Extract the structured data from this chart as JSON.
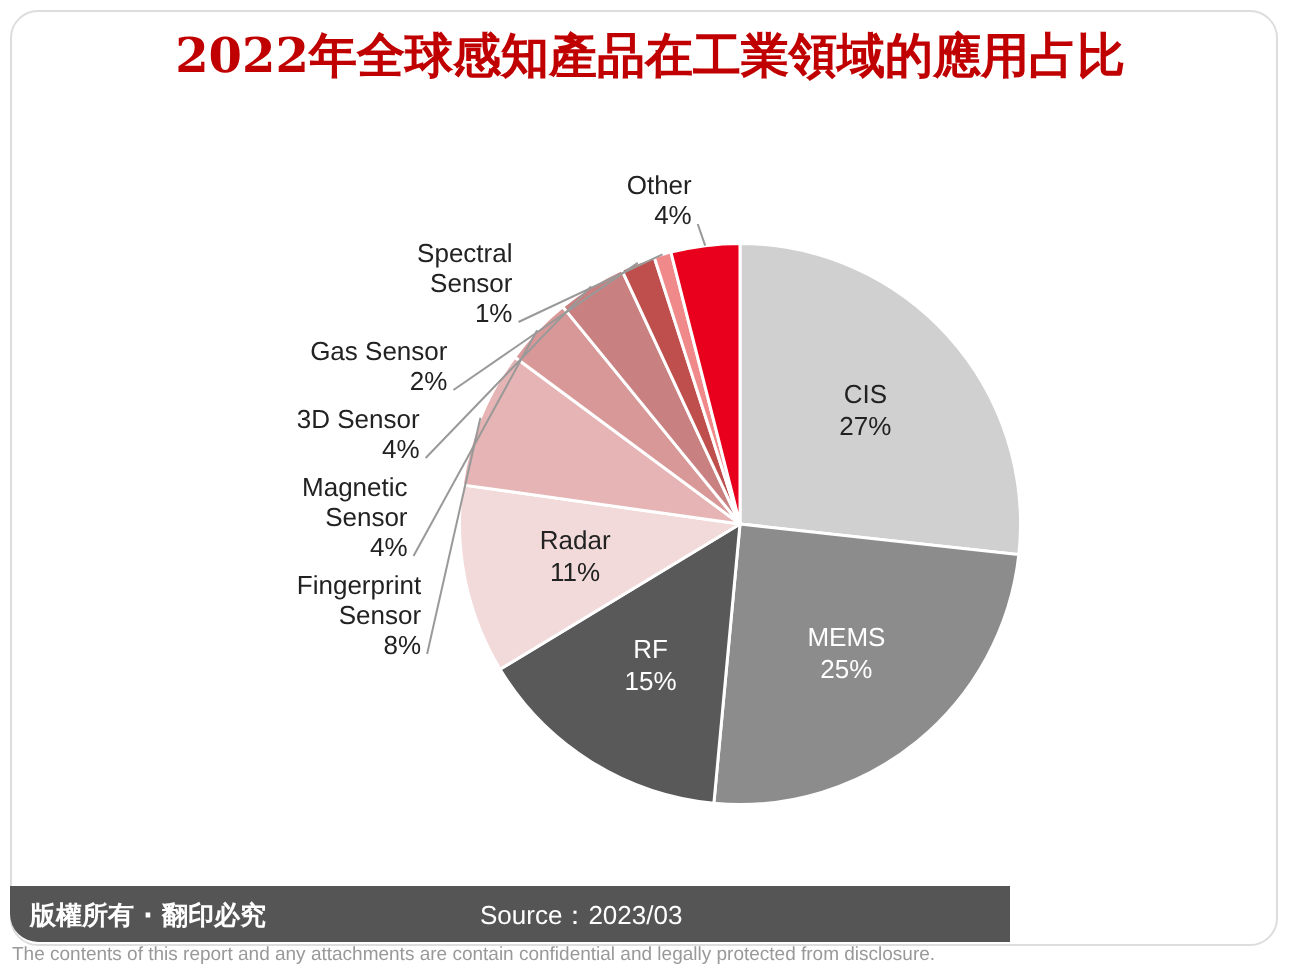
{
  "chart_data": {
    "type": "pie",
    "title": "2022年全球感知產品在工業領域的應用占比",
    "categories": [
      "CIS",
      "MEMS",
      "RF",
      "Radar",
      "Fingerprint Sensor",
      "Magnetic Sensor",
      "3D Sensor",
      "Gas Sensor",
      "Spectral Sensor",
      "Other"
    ],
    "values": [
      27,
      25,
      15,
      11,
      8,
      4,
      4,
      2,
      1,
      4
    ],
    "value_labels": [
      "27%",
      "25%",
      "15%",
      "11%",
      "8%",
      "4%",
      "4%",
      "2%",
      "1%",
      "4%"
    ],
    "colors": [
      "#d0d0d0",
      "#8c8c8c",
      "#595959",
      "#f2dada",
      "#e6b4b4",
      "#d99898",
      "#c98080",
      "#bf4f4d",
      "#f08a8a",
      "#e8001c"
    ],
    "legend": false,
    "annotations": [
      "版權所有 · 翻印必究",
      "Source：2023/03",
      "The contents of this report and any attachments are contain confidential and legally protected from disclosure."
    ]
  }
}
